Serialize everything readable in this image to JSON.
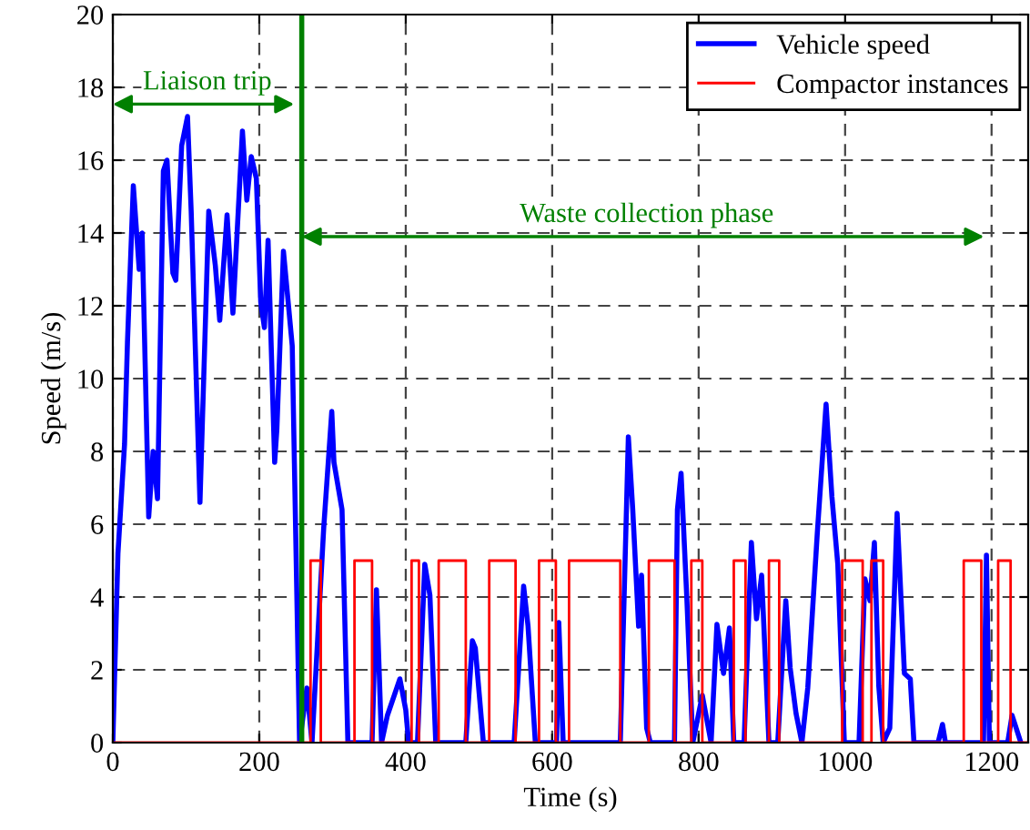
{
  "chart_data": {
    "type": "line",
    "xlabel": "Time (s)",
    "ylabel": "Speed (m/s)",
    "xlim": [
      0,
      1250
    ],
    "ylim": [
      0,
      20
    ],
    "xticks": [
      0,
      200,
      400,
      600,
      800,
      1000,
      1200
    ],
    "yticks": [
      0,
      2,
      4,
      6,
      8,
      10,
      12,
      14,
      16,
      18,
      20
    ],
    "grid": true,
    "legend": "top right",
    "series": [
      {
        "name": "Vehicle speed",
        "color": "#0000ff",
        "x": [
          0,
          7,
          16,
          20,
          28,
          36,
          40,
          49,
          55,
          61,
          69,
          74,
          82,
          86,
          94,
          102,
          107,
          119,
          131,
          140,
          146,
          156,
          164,
          177,
          183,
          189,
          196,
          202,
          207,
          212,
          221,
          224,
          233,
          245,
          255,
          265,
          272,
          288,
          299,
          302,
          313,
          321,
          354,
          360,
          367,
          375,
          392,
          400,
          404,
          416,
          426,
          433,
          441,
          482,
          491,
          495,
          506,
          548,
          561,
          567,
          577,
          606,
          609,
          615,
          693,
          704,
          710,
          718,
          722,
          729,
          734,
          767,
          771,
          776,
          784,
          792,
          805,
          817,
          825,
          834,
          842,
          848,
          862,
          872,
          879,
          886,
          896,
          908,
          919,
          925,
          933,
          941,
          949,
          962,
          974,
          982,
          990,
          999,
          1019,
          1027,
          1034,
          1040,
          1046,
          1052,
          1061,
          1071,
          1081,
          1089,
          1094,
          1127,
          1133,
          1137,
          1189,
          1193,
          1197,
          1222,
          1228,
          1240
        ],
        "values": [
          0,
          5.2,
          8.2,
          11,
          15.3,
          13,
          14,
          6.2,
          8,
          6.7,
          15.7,
          16,
          12.9,
          12.7,
          16.4,
          17.2,
          14.6,
          6.6,
          14.6,
          13.1,
          11.6,
          14.5,
          11.8,
          16.8,
          14.9,
          16.1,
          15.5,
          12.1,
          11.4,
          13.8,
          7.7,
          8.6,
          13.5,
          10.9,
          0,
          1.5,
          0,
          5.9,
          9.1,
          7.7,
          6.4,
          0,
          0,
          4.2,
          0,
          0.75,
          1.75,
          0.9,
          0,
          0,
          4.9,
          4.05,
          0,
          0,
          2.8,
          2.6,
          0,
          0,
          4.3,
          3.2,
          0,
          0,
          3.3,
          0,
          0,
          8.4,
          6.4,
          3.2,
          4.6,
          0.4,
          0,
          0,
          6.4,
          7.4,
          3.9,
          0,
          1.3,
          0,
          3.25,
          1.9,
          3.15,
          0,
          0,
          5.5,
          3.4,
          4.6,
          0,
          0,
          3.9,
          2.05,
          0.8,
          0,
          1.5,
          5.75,
          9.3,
          6.75,
          4.9,
          0,
          0,
          4.5,
          3.9,
          5.5,
          1.55,
          0,
          0.4,
          6.3,
          1.9,
          1.75,
          0,
          0,
          0.5,
          0,
          0,
          5.15,
          0,
          0,
          0.75,
          0
        ]
      },
      {
        "name": "Compactor instances",
        "color": "#ff0000",
        "type": "step",
        "x": [
          0,
          270,
          284,
          330,
          354,
          408,
          418,
          445,
          482,
          514,
          550,
          582,
          605,
          623,
          693,
          732,
          767,
          790,
          805,
          848,
          864,
          896,
          910,
          996,
          1024,
          1036,
          1052,
          1162,
          1186,
          1209,
          1226,
          1250
        ],
        "values": [
          0,
          5,
          0,
          5,
          0,
          5,
          0,
          5,
          0,
          5,
          0,
          5,
          0,
          5,
          0,
          5,
          0,
          5,
          0,
          5,
          0,
          5,
          0,
          5,
          0,
          5,
          0,
          5,
          0,
          5,
          0,
          0
        ]
      }
    ],
    "ref_lines": [
      {
        "axis": "x",
        "value": 258,
        "color": "#008000",
        "line_style": "solid"
      }
    ],
    "annotations": [
      "Liaison trip",
      "Waste collection phase"
    ]
  }
}
